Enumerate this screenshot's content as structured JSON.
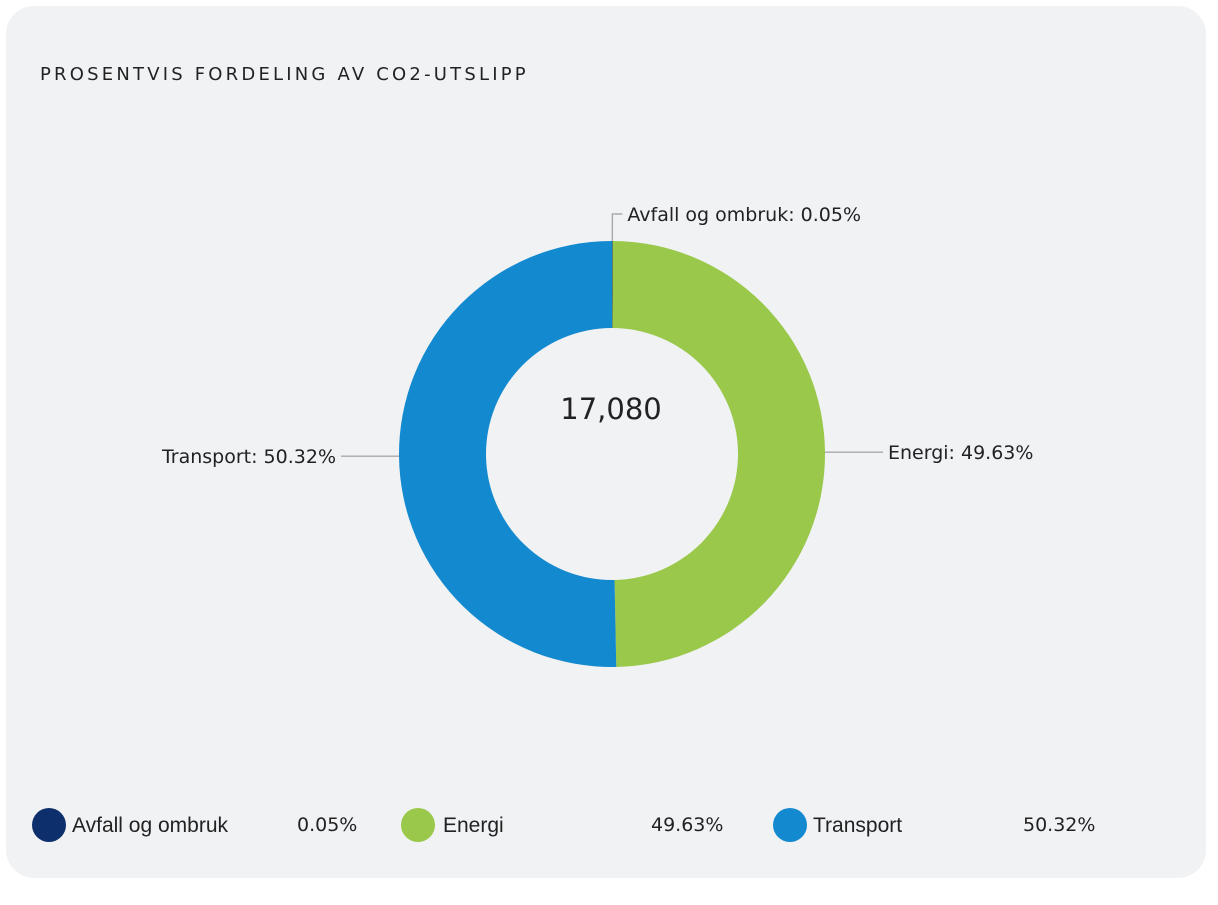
{
  "chart_data": {
    "type": "pie",
    "title": "PROSENTVIS FORDELING AV CO2-UTSLIPP",
    "center_total": "17,080",
    "slices": [
      {
        "name": "Avfall og ombruk",
        "value": 0.05,
        "label": "Avfall og ombruk: 0.05%",
        "legend_value": "0.05%",
        "color": "#0d2f6b"
      },
      {
        "name": "Energi",
        "value": 49.63,
        "label": "Energi: 49.63%",
        "legend_value": "49.63%",
        "color": "#99c84a"
      },
      {
        "name": "Transport",
        "value": 50.32,
        "label": "Transport: 50.32%",
        "legend_value": "50.32%",
        "color": "#1389d0"
      }
    ],
    "legend_position": "bottom"
  },
  "colors": {
    "card_background": "#f1f2f4",
    "text": "#222222",
    "leader_line": "#a9a9a9"
  }
}
